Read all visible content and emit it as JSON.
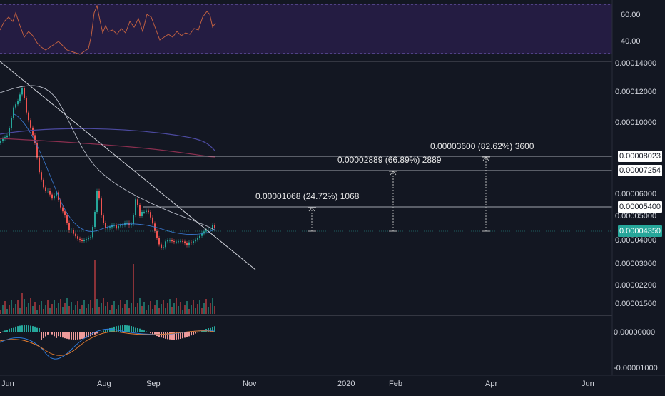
{
  "rsi": {
    "levels": [
      "60.00",
      "40.00"
    ]
  },
  "price_axis": {
    "labels": [
      "0.00014000",
      "0.00012000",
      "0.00010000",
      "0.00006000",
      "0.00005000",
      "0.00004000",
      "0.00003000",
      "0.00002200",
      "0.00001500"
    ]
  },
  "price_tags": {
    "level_8023": "0.00008023",
    "level_7254": "0.00007254",
    "level_5400": "0.00005400",
    "current": "0.00004350"
  },
  "macd_axis": {
    "labels": [
      "0.00000000",
      "-0.00001000"
    ]
  },
  "time_axis": {
    "labels": [
      "Jun",
      "Aug",
      "Sep",
      "Nov",
      "2020",
      "Feb",
      "Apr",
      "Jun"
    ]
  },
  "annotations": {
    "target1": "0.00001068 (24.72%) 1068",
    "target2": "0.00002889 (66.89%) 2889",
    "target3": "0.00003600 (82.62%) 3600"
  },
  "colors": {
    "background": "#131722",
    "rsi_band": "#2a1f4a",
    "rsi_line": "#c06040",
    "candle_up": "#26a69a",
    "candle_down": "#ef5350",
    "current_price": "#26a69a",
    "ma_purple": "#5a4fa0",
    "ma_red": "#8a2f4f"
  },
  "icons": {
    "measure": "dotted-arrow-icon"
  }
}
